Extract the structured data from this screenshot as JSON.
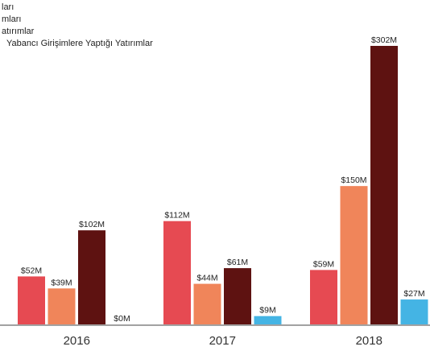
{
  "chart_data": {
    "type": "bar",
    "categories": [
      "2016",
      "2017",
      "2018"
    ],
    "series": [
      {
        "name": "ları",
        "color": "#e64a52",
        "values": [
          52,
          112,
          59
        ],
        "labels": [
          "$52M",
          "$112M",
          "$59M"
        ]
      },
      {
        "name": "mları",
        "color": "#f0855a",
        "values": [
          39,
          44,
          150
        ],
        "labels": [
          "$39M",
          "$44M",
          "$150M"
        ]
      },
      {
        "name": "atırımlar",
        "color": "#5e1211",
        "values": [
          102,
          61,
          302
        ],
        "labels": [
          "$102M",
          "$61M",
          "$302M"
        ]
      },
      {
        "name": "Yabancı Girişimlere Yaptığı Yatırımlar",
        "color": "#44b4e4",
        "values": [
          0,
          9,
          27
        ],
        "labels": [
          "$0M",
          "$9M",
          "$27M"
        ]
      }
    ],
    "ylim": [
      0,
      302
    ],
    "grid": false,
    "legend_position": "top-left"
  }
}
